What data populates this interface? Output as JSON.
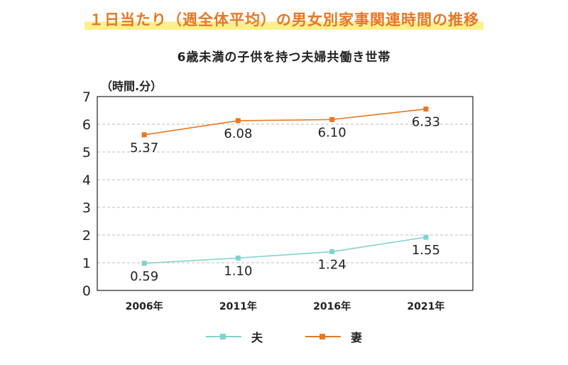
{
  "title": "１日当たり（週全体平均）の男女別家事関連時間の推移",
  "subtitle": "6歳未満の子供を持つ夫婦共働き世帯",
  "unit_label": "（時間.分）",
  "colors": {
    "husband": "#7fd3cf",
    "wife": "#e87722",
    "grid": "#bdbdbd",
    "axis": "#222222"
  },
  "chart_data": {
    "type": "line",
    "title": "１日当たり（週全体平均）の男女別家事関連時間の推移",
    "subtitle": "6歳未満の子供を持つ夫婦共働き世帯",
    "ylabel": "（時間.分）",
    "categories": [
      "2006年",
      "2011年",
      "2016年",
      "2021年"
    ],
    "ylim": [
      0,
      7
    ],
    "yticks": [
      0,
      1,
      2,
      3,
      4,
      5,
      6,
      7
    ],
    "grid": true,
    "legend_position": "bottom",
    "series": [
      {
        "name": "夫",
        "values": [
          0.98,
          1.17,
          1.4,
          1.92
        ],
        "labels": [
          "0.59",
          "1.10",
          "1.24",
          "1.55"
        ]
      },
      {
        "name": "妻",
        "values": [
          5.62,
          6.13,
          6.17,
          6.55
        ],
        "labels": [
          "5.37",
          "6.08",
          "6.10",
          "6.33"
        ]
      }
    ]
  }
}
